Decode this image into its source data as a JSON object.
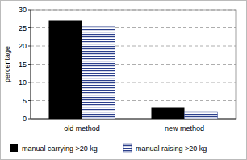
{
  "chart_data": {
    "type": "bar",
    "y_label": "percentage",
    "categories": [
      "old method",
      "new method"
    ],
    "series": [
      {
        "name": "manual carrying >20 kg",
        "color": "#000000",
        "values": [
          27,
          3
        ]
      },
      {
        "name": "manual raising >20 kg",
        "color": "#2b3f8c",
        "values": [
          25.5,
          2
        ]
      }
    ],
    "ylim": [
      0,
      30
    ],
    "yticks": [
      0,
      5,
      10,
      15,
      20,
      25,
      30
    ],
    "grid": true,
    "legend": "bottom"
  }
}
